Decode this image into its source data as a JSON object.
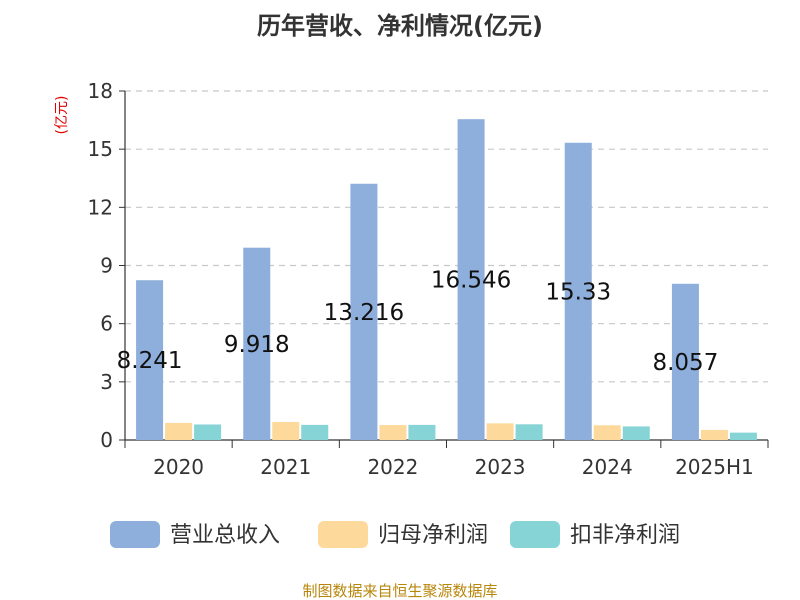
{
  "chart_data": {
    "type": "bar",
    "title": "历年营收、净利情况(亿元)",
    "ylabel": "(亿元)",
    "xlabel": "",
    "categories": [
      "2020",
      "2021",
      "2022",
      "2023",
      "2024",
      "2025H1"
    ],
    "ylim": [
      0,
      18
    ],
    "yticks": [
      0,
      3,
      6,
      9,
      12,
      15,
      18
    ],
    "grid": true,
    "legend_position": "bottom",
    "series": [
      {
        "name": "营业总收入",
        "color": "#8eaedb",
        "values": [
          8.241,
          9.918,
          13.216,
          16.546,
          15.33,
          8.057
        ],
        "labels": [
          "8.241",
          "9.918",
          "13.216",
          "16.546",
          "15.33",
          "8.057"
        ]
      },
      {
        "name": "归母净利润",
        "color": "#fdd99b",
        "values": [
          0.88,
          0.93,
          0.77,
          0.86,
          0.76,
          0.52
        ]
      },
      {
        "name": "扣非净利润",
        "color": "#86d4d6",
        "values": [
          0.8,
          0.78,
          0.78,
          0.81,
          0.7,
          0.38
        ]
      }
    ]
  },
  "source": "制图数据来自恒生聚源数据库"
}
